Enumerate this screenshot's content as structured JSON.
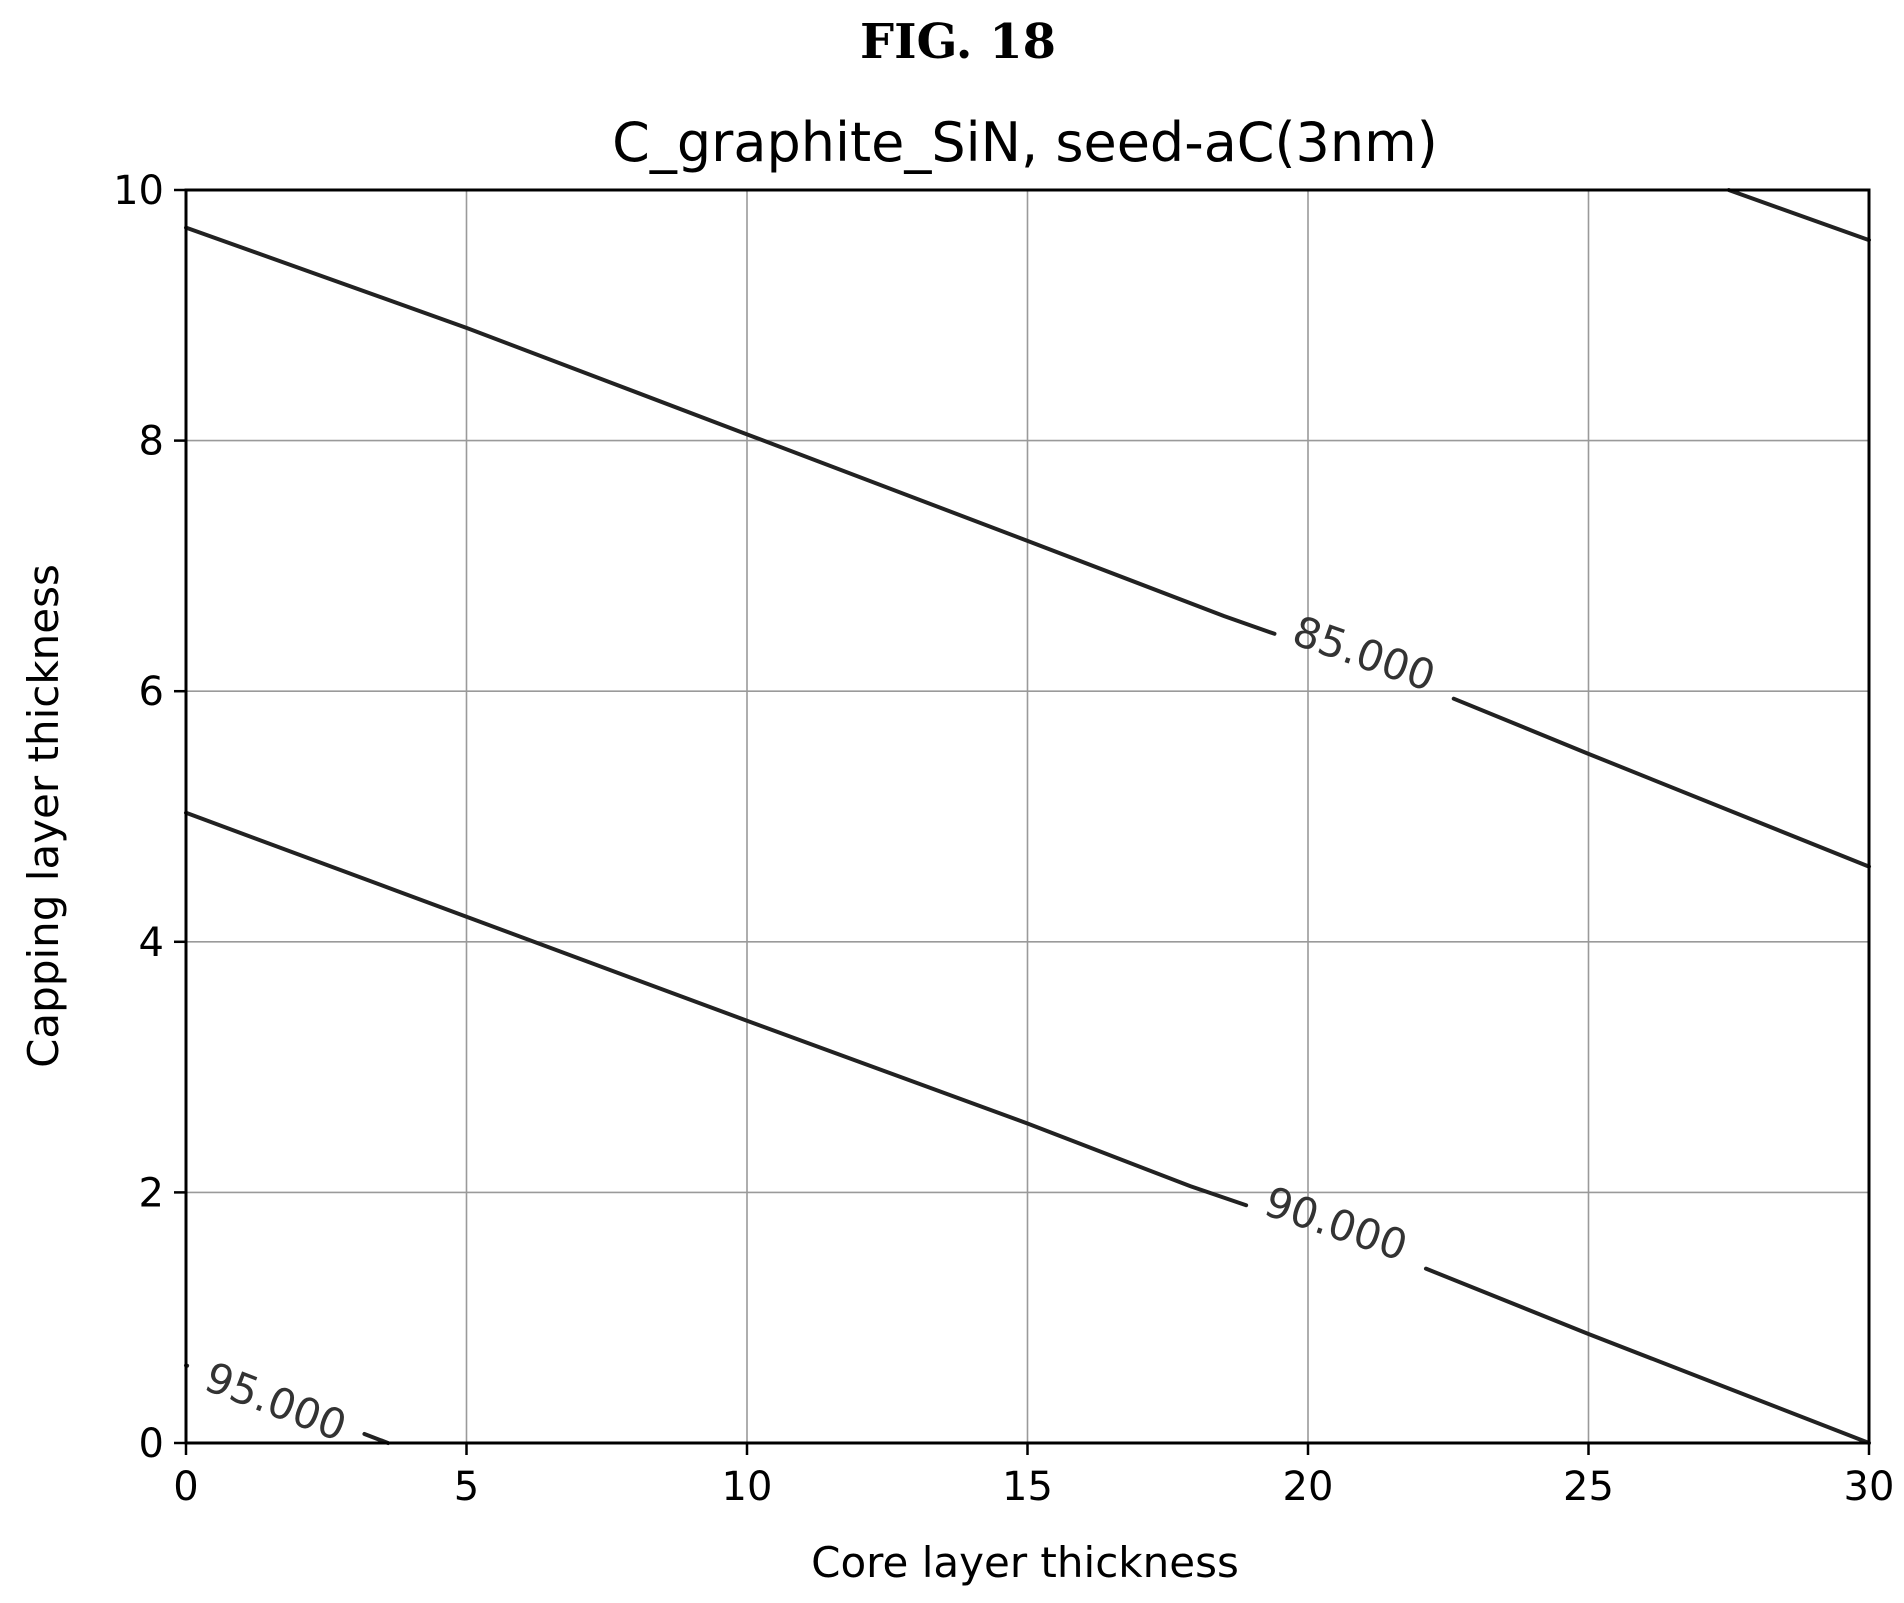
{
  "figure_label": "FIG. 18",
  "chart_data": {
    "type": "contour",
    "title": "C_graphite_SiN, seed-aC(3nm)",
    "xlabel": "Core layer thickness",
    "ylabel": "Capping layer thickness",
    "xlim": [
      0,
      30
    ],
    "ylim": [
      0,
      10
    ],
    "xticks": [
      0,
      5,
      10,
      15,
      20,
      25,
      30
    ],
    "yticks": [
      0,
      2,
      4,
      6,
      8,
      10
    ],
    "x_tick_labels": [
      "0",
      "5",
      "10",
      "15",
      "20",
      "25",
      "30"
    ],
    "y_tick_labels": [
      "0",
      "2",
      "4",
      "6",
      "8",
      "10"
    ],
    "grid": true,
    "line_color": "#222222",
    "contours": [
      {
        "level": 85,
        "label": "85.000",
        "label_at": [
          21,
          6.3
        ],
        "label_angle_data": true,
        "points": [
          [
            0,
            9.7
          ],
          [
            5,
            8.9
          ],
          [
            10,
            8.05
          ],
          [
            15,
            7.2
          ],
          [
            18.5,
            6.6
          ],
          [
            22,
            6.05
          ],
          [
            25,
            5.5
          ],
          [
            30,
            4.6
          ]
        ]
      },
      {
        "level": 85,
        "label": "",
        "points": [
          [
            27.5,
            10.0
          ],
          [
            30,
            9.6
          ]
        ]
      },
      {
        "level": 90,
        "label": "90.000",
        "label_at": [
          20.5,
          1.75
        ],
        "label_angle_data": true,
        "points": [
          [
            0,
            5.03
          ],
          [
            5,
            4.2
          ],
          [
            10,
            3.37
          ],
          [
            15,
            2.55
          ],
          [
            17.9,
            2.05
          ],
          [
            21.5,
            1.5
          ],
          [
            25,
            0.87
          ],
          [
            30,
            0.0
          ]
        ]
      },
      {
        "level": 95,
        "label": "95.000",
        "label_at": [
          1.6,
          0.33
        ],
        "label_angle_data": true,
        "points": [
          [
            0,
            0.62
          ],
          [
            3.6,
            0.0
          ]
        ]
      }
    ]
  }
}
